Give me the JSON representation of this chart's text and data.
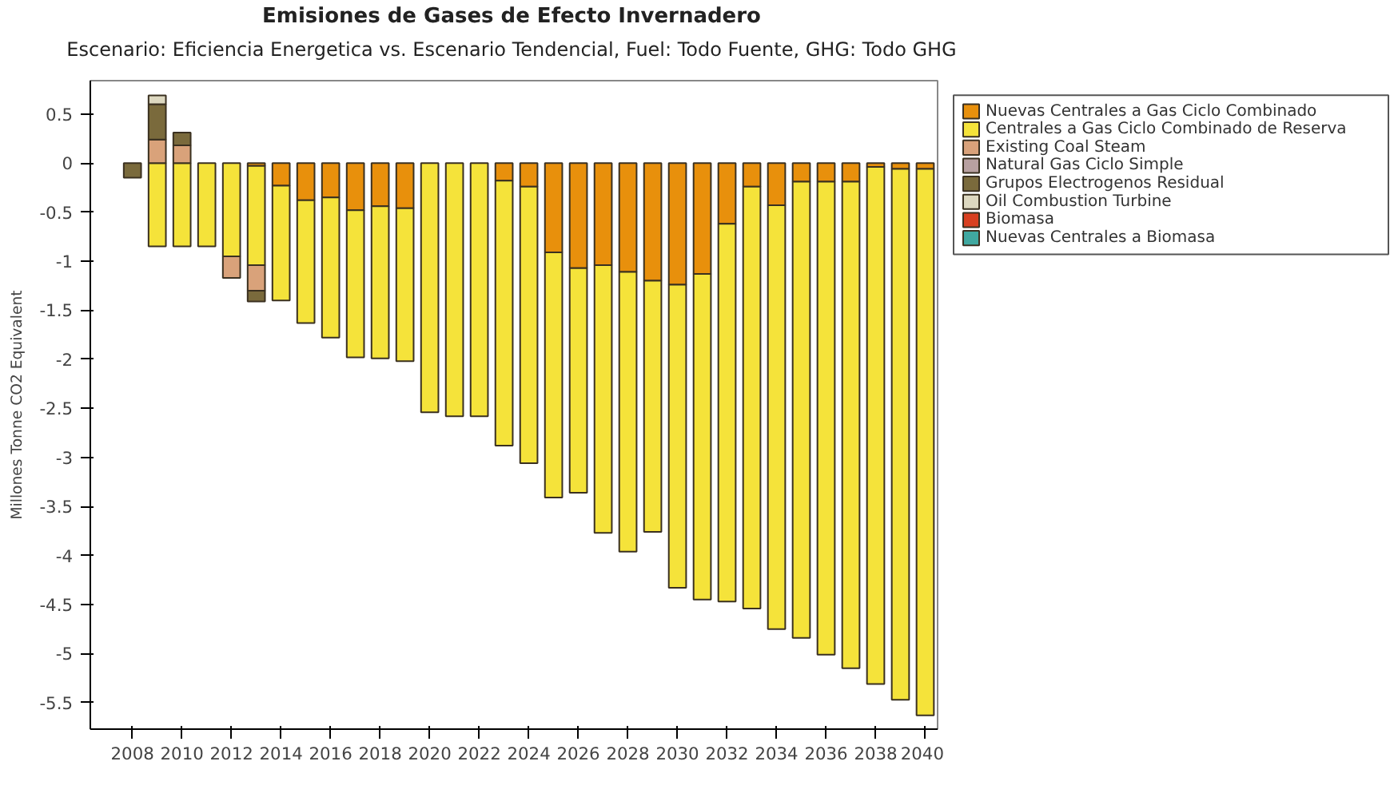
{
  "chart_data": {
    "type": "bar",
    "stacked": true,
    "title": "Emisiones de Gases de Efecto Invernadero",
    "subtitle": "Escenario: Eficiencia Energetica vs. Escenario Tendencial, Fuel: Todo Fuente, GHG: Todo GHG",
    "ylabel": "Millones Tonne CO2 Equivalent",
    "x": [
      2008,
      2009,
      2010,
      2011,
      2012,
      2013,
      2014,
      2015,
      2016,
      2017,
      2018,
      2019,
      2020,
      2021,
      2022,
      2023,
      2024,
      2025,
      2026,
      2027,
      2028,
      2029,
      2030,
      2031,
      2032,
      2033,
      2034,
      2035,
      2036,
      2037,
      2038,
      2039,
      2040
    ],
    "xlim": [
      2006.3,
      2040.5
    ],
    "xticks": [
      2008,
      2010,
      2012,
      2014,
      2016,
      2018,
      2020,
      2022,
      2024,
      2026,
      2028,
      2030,
      2032,
      2034,
      2036,
      2038,
      2040
    ],
    "ylim": [
      -5.77,
      0.84
    ],
    "yticks": [
      -5.5,
      -5,
      -4.5,
      -4,
      -3.5,
      -3,
      -2.5,
      -2,
      -1.5,
      -1,
      -0.5,
      0,
      0.5
    ],
    "grid": false,
    "legend": "top right",
    "series": [
      {
        "name": "Nuevas Centrales a Gas Ciclo Combinado",
        "color": "#e8900c",
        "values": [
          null,
          null,
          null,
          null,
          null,
          -0.03,
          -0.23,
          -0.38,
          -0.35,
          -0.48,
          -0.44,
          -0.46,
          null,
          null,
          null,
          -0.18,
          -0.24,
          -0.91,
          -1.07,
          -1.04,
          -1.11,
          -1.2,
          -1.24,
          -1.13,
          -0.62,
          -0.24,
          -0.43,
          -0.19,
          -0.19,
          -0.19,
          -0.04,
          -0.06,
          -0.06
        ]
      },
      {
        "name": "Centrales a Gas Ciclo Combinado de Reserva",
        "color": "#f5e33a",
        "values": [
          null,
          -0.85,
          -0.85,
          -0.85,
          -0.95,
          -1.01,
          -1.17,
          -1.25,
          -1.43,
          -1.5,
          -1.55,
          -1.56,
          -2.54,
          -2.58,
          -2.58,
          -2.7,
          -2.82,
          -2.5,
          -2.29,
          -2.73,
          -2.85,
          -2.56,
          -3.09,
          -3.32,
          -3.85,
          -4.3,
          -4.32,
          -4.65,
          -4.82,
          -4.96,
          -5.27,
          -5.41,
          -5.57
        ]
      },
      {
        "name": "Existing Coal Steam",
        "color": "#d9a27a",
        "values": [
          null,
          0.24,
          0.18,
          null,
          -0.22,
          -0.26,
          null,
          null,
          null,
          null,
          null,
          null,
          null,
          null,
          null,
          null,
          null,
          null,
          null,
          null,
          null,
          null,
          null,
          null,
          null,
          null,
          null,
          null,
          null,
          null,
          null,
          null,
          null
        ]
      },
      {
        "name": "Natural Gas Ciclo Simple",
        "color": "#b8a0a0",
        "values": [
          null,
          null,
          null,
          null,
          null,
          null,
          null,
          null,
          null,
          null,
          null,
          null,
          null,
          null,
          null,
          null,
          null,
          null,
          null,
          null,
          null,
          null,
          null,
          null,
          null,
          null,
          null,
          null,
          null,
          null,
          null,
          null,
          null
        ]
      },
      {
        "name": "Grupos Electrogenos Residual",
        "color": "#7a6a3c",
        "values": [
          -0.15,
          0.36,
          0.13,
          null,
          null,
          -0.11,
          null,
          null,
          null,
          null,
          null,
          null,
          null,
          null,
          null,
          null,
          null,
          null,
          null,
          null,
          null,
          null,
          null,
          null,
          null,
          null,
          null,
          null,
          null,
          null,
          null,
          null,
          null
        ]
      },
      {
        "name": "Oil Combustion Turbine",
        "color": "#ddd8c0",
        "values": [
          null,
          0.09,
          null,
          null,
          null,
          null,
          null,
          null,
          null,
          null,
          null,
          null,
          null,
          null,
          null,
          null,
          null,
          null,
          null,
          null,
          null,
          null,
          null,
          null,
          null,
          null,
          null,
          null,
          null,
          null,
          null,
          null,
          null
        ]
      },
      {
        "name": "Biomasa",
        "color": "#d84020",
        "values": [
          null,
          null,
          null,
          null,
          null,
          null,
          null,
          null,
          null,
          null,
          null,
          null,
          null,
          null,
          null,
          null,
          null,
          null,
          null,
          null,
          null,
          null,
          null,
          null,
          null,
          null,
          null,
          null,
          null,
          null,
          null,
          null,
          null
        ]
      },
      {
        "name": "Nuevas Centrales a Biomasa",
        "color": "#40a8a0",
        "values": [
          null,
          null,
          null,
          null,
          null,
          null,
          null,
          null,
          null,
          null,
          null,
          null,
          null,
          null,
          null,
          null,
          null,
          null,
          null,
          null,
          null,
          null,
          null,
          null,
          null,
          null,
          null,
          null,
          null,
          null,
          null,
          null,
          null
        ]
      }
    ]
  }
}
